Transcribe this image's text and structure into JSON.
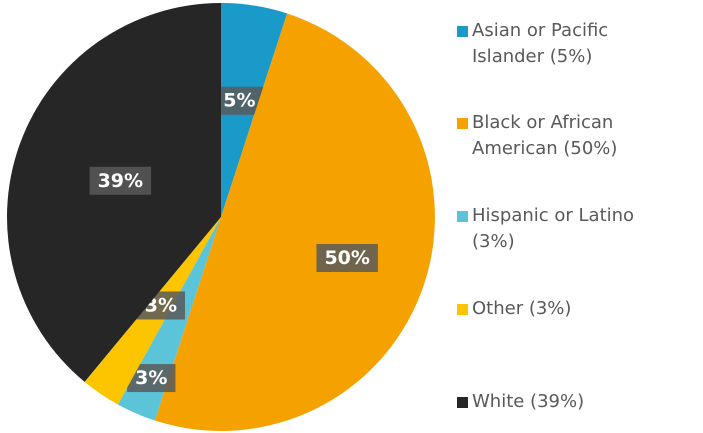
{
  "chart_data": {
    "type": "pie",
    "categories": [
      "Asian or Pacific Islander (5%)",
      "Black or African American (50%)",
      "Hispanic or Latino (3%)",
      "Other (3%)",
      "White (39%)"
    ],
    "values": [
      5,
      50,
      3,
      3,
      39
    ],
    "value_labels": [
      "5%",
      "50%",
      "3%",
      "3%",
      "39%"
    ],
    "colors": [
      "#1a9ac9",
      "#f5a100",
      "#5bc4d8",
      "#fcc500",
      "#262626"
    ],
    "legend": "right"
  }
}
